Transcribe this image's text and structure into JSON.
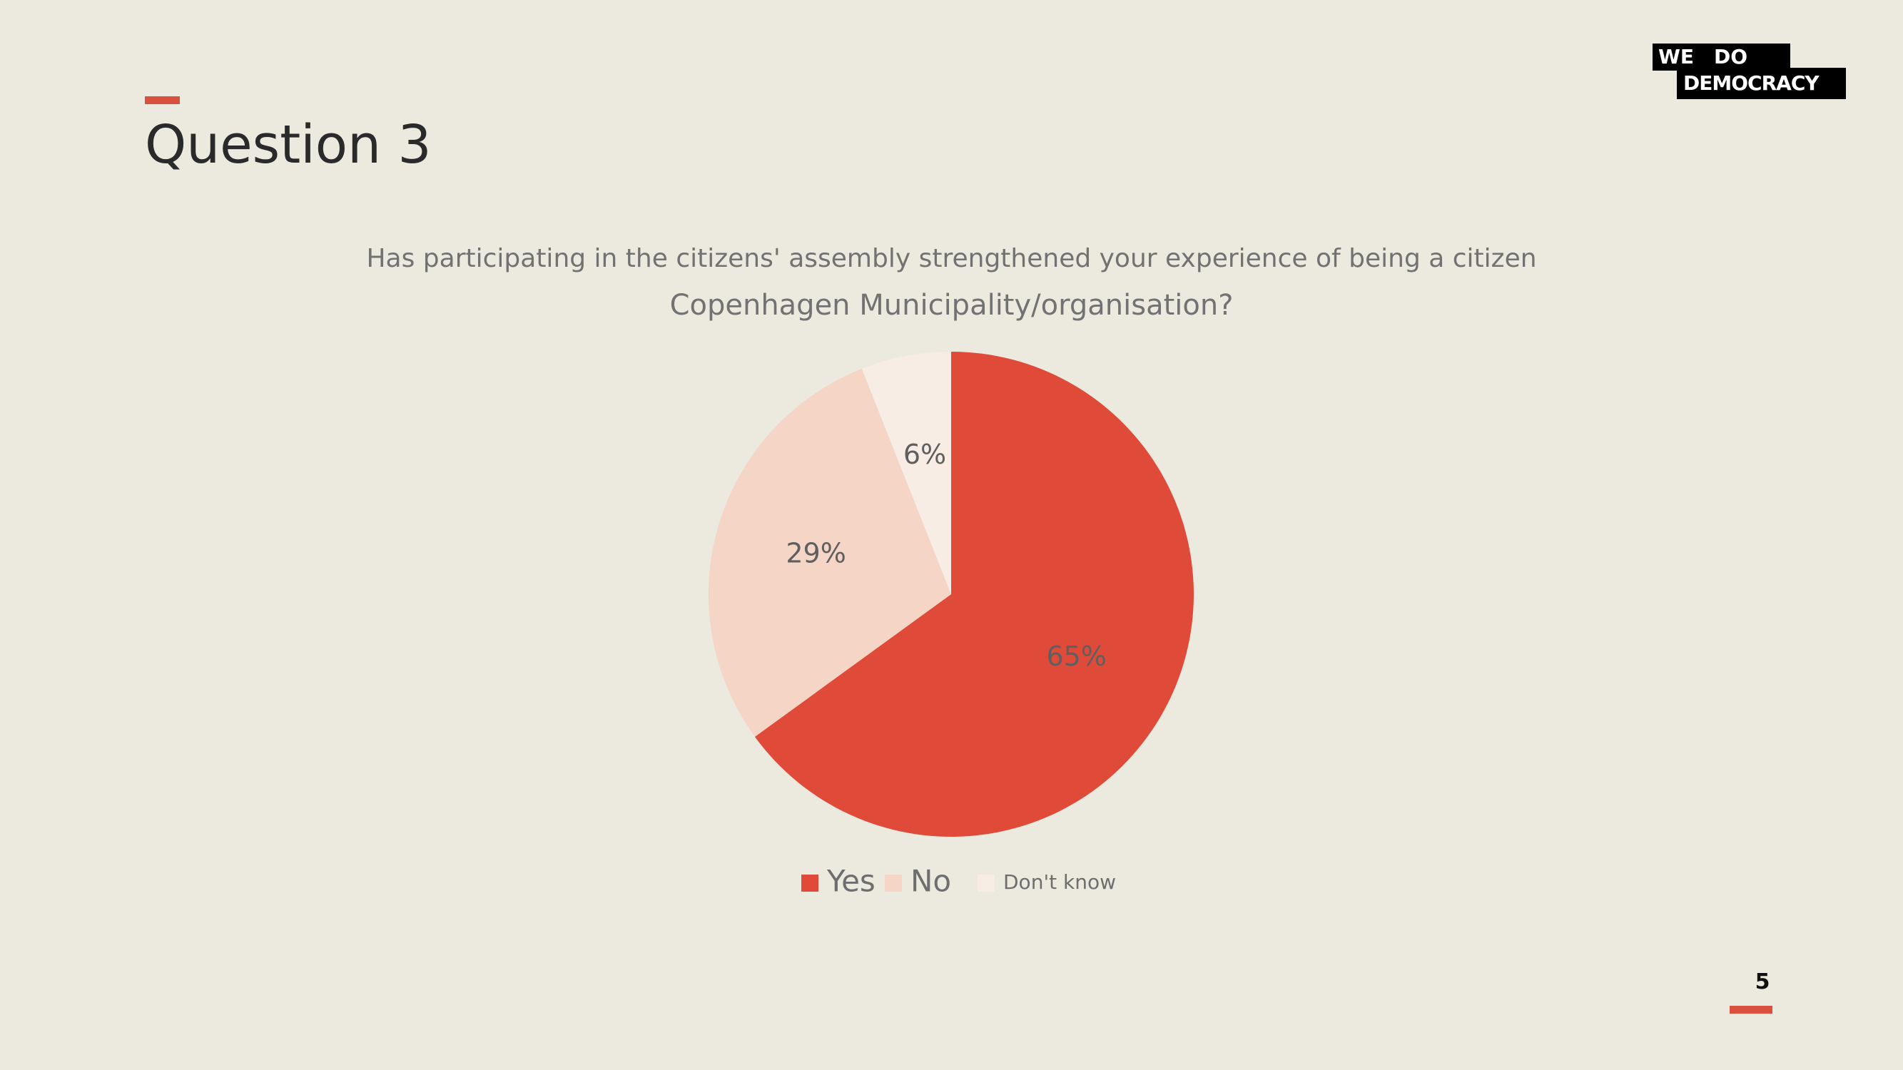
{
  "slide": {
    "title": "Question 3",
    "page_number": "5"
  },
  "logo": {
    "line1_left": "WE",
    "line1_right": "DO",
    "line2": "DEMOCRACY"
  },
  "chart_data": {
    "type": "pie",
    "title_line1": "Has participating in the citizens' assembly strengthened your experience of being a citizen",
    "title_line2": "Copenhagen Municipality/organisation?",
    "categories": [
      "Yes",
      "No",
      "Don't know"
    ],
    "values": [
      65,
      29,
      6
    ],
    "labels": [
      "65%",
      "29%",
      "6%"
    ],
    "colors": [
      "#E04B39",
      "#F5D5C6",
      "#F8EDE4"
    ],
    "legend_position": "bottom"
  },
  "colors": {
    "background": "#ECE9DF",
    "accent": "#D9503F",
    "label_text": "#5F5F5F",
    "legend_text": "#6E6E6E"
  }
}
